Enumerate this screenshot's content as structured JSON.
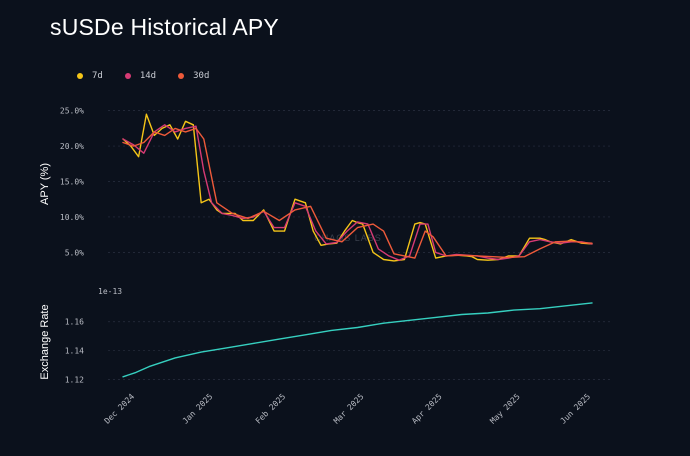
{
  "title": "sUSDe Historical APY",
  "legend": [
    {
      "label": "7d",
      "color": "#f5c518"
    },
    {
      "label": "14d",
      "color": "#d63a74"
    },
    {
      "label": "30d",
      "color": "#ee5a3a"
    }
  ],
  "watermark": "CHAOS LABS",
  "colors": {
    "background": "#0b111c",
    "grid": "#2a3140",
    "exchange_rate": "#36d0c0"
  },
  "chart_data": [
    {
      "type": "line",
      "ylabel": "APY (%)",
      "yticks": [
        "5.0%",
        "10.0%",
        "15.0%",
        "20.0%",
        "25.0%"
      ],
      "ytick_values": [
        5,
        10,
        15,
        20,
        25
      ],
      "ylim": [
        2.8,
        26.5
      ],
      "xlim": [
        0,
        180
      ],
      "grid": "horizontal dashed",
      "legend_position": "top-left",
      "series": [
        {
          "name": "7d",
          "color": "#f5c518",
          "x": [
            0,
            3,
            6,
            9,
            12,
            15,
            18,
            21,
            24,
            27,
            30,
            33,
            36,
            38,
            40,
            43,
            46,
            50,
            54,
            58,
            62,
            66,
            70,
            73,
            76,
            79,
            82,
            85,
            88,
            90,
            92,
            96,
            100,
            104,
            108,
            112,
            114,
            116,
            120,
            124,
            128,
            132,
            134,
            136,
            140,
            144,
            148,
            152,
            156,
            160,
            162,
            164,
            168,
            172,
            176,
            180
          ],
          "y": [
            21,
            20,
            18.5,
            24.5,
            21.5,
            22.5,
            23,
            21,
            23.5,
            23,
            12,
            12.5,
            11,
            10.5,
            10.5,
            10.5,
            9.5,
            9.5,
            11,
            8,
            8,
            12.5,
            12,
            8,
            6,
            6.2,
            6.3,
            8,
            9.5,
            9.2,
            9,
            5,
            4,
            3.8,
            4,
            9,
            9.2,
            9,
            4.2,
            4.5,
            4.6,
            4.5,
            4.4,
            4,
            3.9,
            4,
            4.5,
            4.5,
            7,
            7,
            6.8,
            6.5,
            6.2,
            6.8,
            6.3,
            6.2
          ]
        },
        {
          "name": "14d",
          "color": "#d63a74",
          "x": [
            0,
            4,
            8,
            12,
            16,
            20,
            24,
            28,
            31,
            34,
            38,
            42,
            46,
            50,
            54,
            58,
            62,
            66,
            70,
            74,
            78,
            82,
            86,
            90,
            94,
            98,
            102,
            106,
            110,
            114,
            117,
            120,
            124,
            128,
            132,
            136,
            140,
            144,
            148,
            152,
            156,
            160,
            164,
            168,
            172,
            176,
            180
          ],
          "y": [
            21,
            20.2,
            19,
            22,
            23,
            22,
            22.5,
            22.8,
            16.5,
            12,
            10.5,
            10.2,
            9.8,
            10,
            10.8,
            8.5,
            8.5,
            12,
            11.5,
            8,
            6.2,
            6.4,
            8,
            9.3,
            9,
            5.5,
            4.5,
            3.9,
            4.5,
            9,
            9,
            5,
            4.5,
            4.7,
            4.6,
            4.5,
            4.2,
            4,
            4.2,
            4.5,
            6.5,
            6.8,
            6.5,
            6.3,
            6.5,
            6.5,
            6.2
          ]
        },
        {
          "name": "30d",
          "color": "#ee5a3a",
          "x": [
            0,
            4,
            8,
            12,
            16,
            20,
            24,
            28,
            31,
            36,
            42,
            48,
            54,
            60,
            66,
            72,
            78,
            84,
            90,
            96,
            100,
            104,
            108,
            112,
            116,
            119,
            124,
            130,
            136,
            142,
            148,
            154,
            160,
            166,
            172,
            176,
            180
          ],
          "y": [
            20.5,
            20,
            20.5,
            22,
            21.5,
            22.5,
            22,
            22.5,
            21,
            12,
            10.5,
            9.8,
            10.8,
            9.5,
            11,
            11.5,
            7,
            6.5,
            8.5,
            9,
            8,
            4.8,
            4.5,
            4.2,
            8,
            7.2,
            4.5,
            4.6,
            4.5,
            4.4,
            4.3,
            4.4,
            5.5,
            6.5,
            6.6,
            6.4,
            6.3
          ]
        }
      ]
    },
    {
      "type": "line",
      "ylabel": "Exchange Rate",
      "offset_label": "1e-13",
      "yticks": [
        "1.12",
        "1.14",
        "1.16"
      ],
      "ytick_values": [
        1.12,
        1.14,
        1.16
      ],
      "ylim": [
        1.117,
        1.175
      ],
      "xlim": [
        0,
        180
      ],
      "grid": "horizontal dashed",
      "xticks": [
        "Dec 2024",
        "Jan 2025",
        "Feb 2025",
        "Mar 2025",
        "Apr 2025",
        "May 2025",
        "Jun 2025"
      ],
      "xtick_values": [
        3,
        33,
        61,
        91,
        121,
        151,
        178
      ],
      "series": [
        {
          "name": "Exchange Rate",
          "color": "#36d0c0",
          "x": [
            0,
            5,
            10,
            20,
            30,
            40,
            50,
            60,
            70,
            80,
            90,
            100,
            110,
            120,
            130,
            140,
            150,
            160,
            170,
            180
          ],
          "y": [
            1.122,
            1.125,
            1.129,
            1.135,
            1.139,
            1.142,
            1.145,
            1.148,
            1.151,
            1.154,
            1.156,
            1.159,
            1.161,
            1.163,
            1.165,
            1.166,
            1.168,
            1.169,
            1.171,
            1.173
          ]
        }
      ]
    }
  ]
}
